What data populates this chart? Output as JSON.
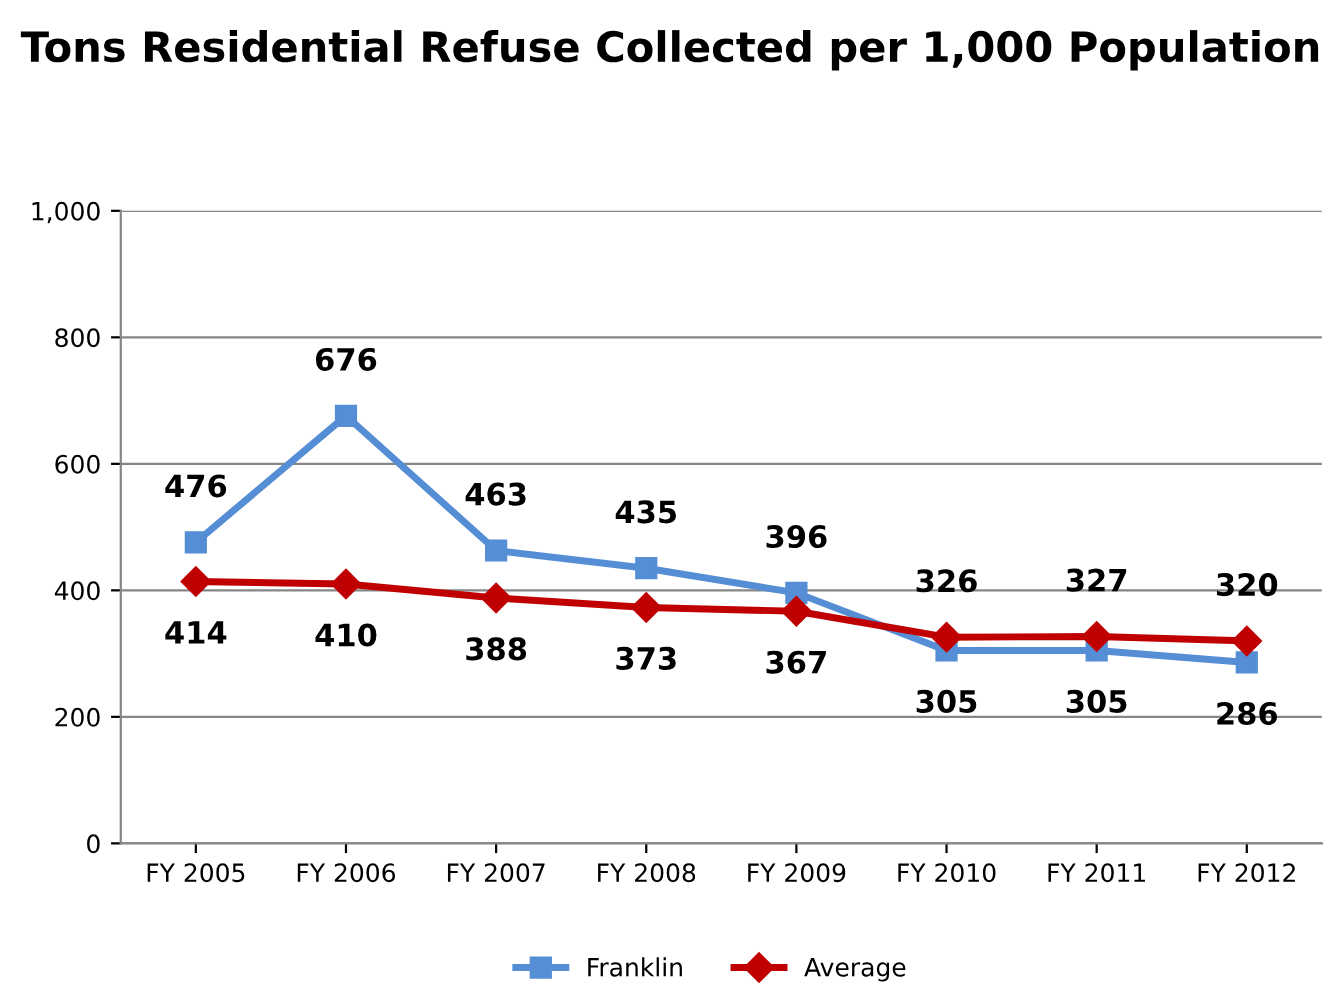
{
  "chart_data": {
    "type": "line",
    "title": "Tons Residential Refuse Collected per 1,000 Population",
    "categories": [
      "FY 2005",
      "FY 2006",
      "FY 2007",
      "FY 2008",
      "FY 2009",
      "FY 2010",
      "FY 2011",
      "FY 2012"
    ],
    "series": [
      {
        "name": "Franklin",
        "color": "#558ed5",
        "marker": "square",
        "values": [
          476,
          676,
          463,
          435,
          396,
          305,
          305,
          286
        ]
      },
      {
        "name": "Average",
        "color": "#c00000",
        "marker": "diamond",
        "values": [
          414,
          410,
          388,
          373,
          367,
          326,
          327,
          320
        ]
      }
    ],
    "ylim": [
      0,
      1000
    ],
    "yticks": [
      0,
      200,
      400,
      600,
      800,
      {
        "value": 1000,
        "label": "1,000"
      }
    ],
    "grid": "y",
    "legend": "bottom",
    "data_labels": true
  }
}
